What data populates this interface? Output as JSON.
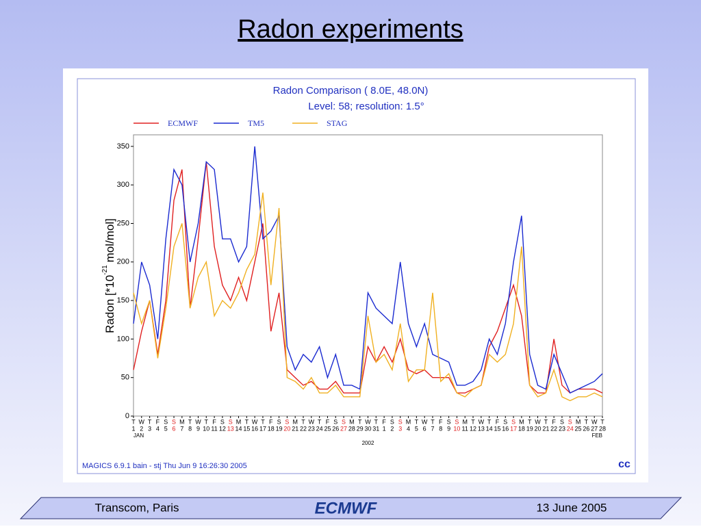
{
  "slide": {
    "title": "Radon experiments",
    "footer_left": "Transcom, Paris",
    "logo": "ECMWF",
    "footer_right": "13 June 2005"
  },
  "chart_data": {
    "type": "line",
    "title": "Radon Comparison (  8.0E, 48.0N)",
    "subtitle": "Level: 58; resolution: 1.5°",
    "ylabel": "Radon [*10",
    "ylabel_sup": "-21",
    "ylabel_end": "mol/mol]",
    "footnote": "MAGICS 6.9.1 bain - stj Thu Jun  9 16:26:30 2005",
    "categories": [
      "1",
      "2",
      "3",
      "4",
      "5",
      "6",
      "7",
      "8",
      "9",
      "10",
      "11",
      "12",
      "13",
      "14",
      "15",
      "16",
      "17",
      "18",
      "19",
      "20",
      "21",
      "22",
      "23",
      "24",
      "25",
      "26",
      "27",
      "28",
      "29",
      "30",
      "31",
      "1",
      "2",
      "3",
      "4",
      "5",
      "6",
      "7",
      "8",
      "9",
      "10",
      "11",
      "12",
      "13",
      "14",
      "15",
      "16",
      "17",
      "18",
      "19",
      "20",
      "21",
      "22",
      "23",
      "24",
      "25",
      "26",
      "27",
      "28"
    ],
    "weekdays": [
      "T",
      "W",
      "T",
      "F",
      "S",
      "S",
      "M",
      "T",
      "W",
      "T",
      "F",
      "S",
      "S",
      "M",
      "T",
      "W",
      "T",
      "F",
      "S",
      "S",
      "M",
      "T",
      "W",
      "T",
      "F",
      "S",
      "S",
      "M",
      "T",
      "W",
      "T",
      "F",
      "S",
      "S",
      "M",
      "T",
      "W",
      "T",
      "F",
      "S",
      "S",
      "M",
      "T",
      "W",
      "T",
      "F",
      "S",
      "S",
      "M",
      "T",
      "W",
      "T",
      "F",
      "S",
      "S",
      "M",
      "T",
      "W",
      "T"
    ],
    "label_colors": [
      "#000",
      "#000",
      "#000",
      "#000",
      "#000",
      "#e02020",
      "#000",
      "#000",
      "#000",
      "#000",
      "#000",
      "#000",
      "#e02020",
      "#000",
      "#000",
      "#000",
      "#000",
      "#000",
      "#000",
      "#e02020",
      "#000",
      "#000",
      "#000",
      "#000",
      "#000",
      "#000",
      "#e02020",
      "#000",
      "#000",
      "#000",
      "#000",
      "#000",
      "#000",
      "#e02020",
      "#000",
      "#000",
      "#000",
      "#000",
      "#000",
      "#000",
      "#e02020",
      "#000",
      "#000",
      "#000",
      "#000",
      "#000",
      "#000",
      "#e02020",
      "#000",
      "#000",
      "#000",
      "#000",
      "#000",
      "#000",
      "#e02020",
      "#000",
      "#000",
      "#000",
      "#000"
    ],
    "month_labels": [
      "JAN",
      "FEB"
    ],
    "year_label": "2002",
    "ylim": [
      0,
      365
    ],
    "yticks": [
      0,
      50,
      100,
      150,
      200,
      250,
      300,
      350
    ],
    "series": [
      {
        "name": "ECMWF",
        "color": "#e02020",
        "values": [
          60,
          110,
          150,
          80,
          150,
          280,
          320,
          140,
          230,
          330,
          220,
          170,
          150,
          180,
          150,
          200,
          250,
          110,
          160,
          60,
          50,
          40,
          45,
          35,
          35,
          45,
          30,
          30,
          30,
          90,
          70,
          90,
          70,
          100,
          60,
          55,
          60,
          50,
          50,
          50,
          30,
          30,
          35,
          40,
          90,
          110,
          140,
          170,
          130,
          40,
          30,
          30,
          100,
          40,
          30,
          35,
          35,
          35,
          30
        ]
      },
      {
        "name": "TM5",
        "color": "#1a2ad0",
        "values": [
          120,
          200,
          170,
          100,
          230,
          320,
          300,
          200,
          250,
          330,
          320,
          230,
          230,
          200,
          220,
          350,
          230,
          240,
          260,
          90,
          60,
          80,
          70,
          90,
          50,
          80,
          40,
          40,
          35,
          160,
          140,
          130,
          120,
          200,
          120,
          90,
          120,
          80,
          75,
          70,
          40,
          40,
          45,
          60,
          100,
          80,
          120,
          200,
          260,
          80,
          40,
          35,
          80,
          55,
          30,
          35,
          40,
          45,
          55
        ]
      },
      {
        "name": "STAG",
        "color": "#f0b020",
        "values": [
          160,
          120,
          150,
          75,
          140,
          220,
          250,
          140,
          180,
          200,
          130,
          150,
          140,
          160,
          190,
          210,
          290,
          170,
          270,
          50,
          45,
          35,
          50,
          30,
          30,
          40,
          25,
          25,
          25,
          130,
          70,
          80,
          60,
          120,
          45,
          60,
          60,
          160,
          45,
          55,
          30,
          25,
          35,
          40,
          80,
          70,
          80,
          120,
          220,
          40,
          25,
          30,
          60,
          25,
          20,
          25,
          25,
          30,
          25
        ]
      }
    ]
  }
}
